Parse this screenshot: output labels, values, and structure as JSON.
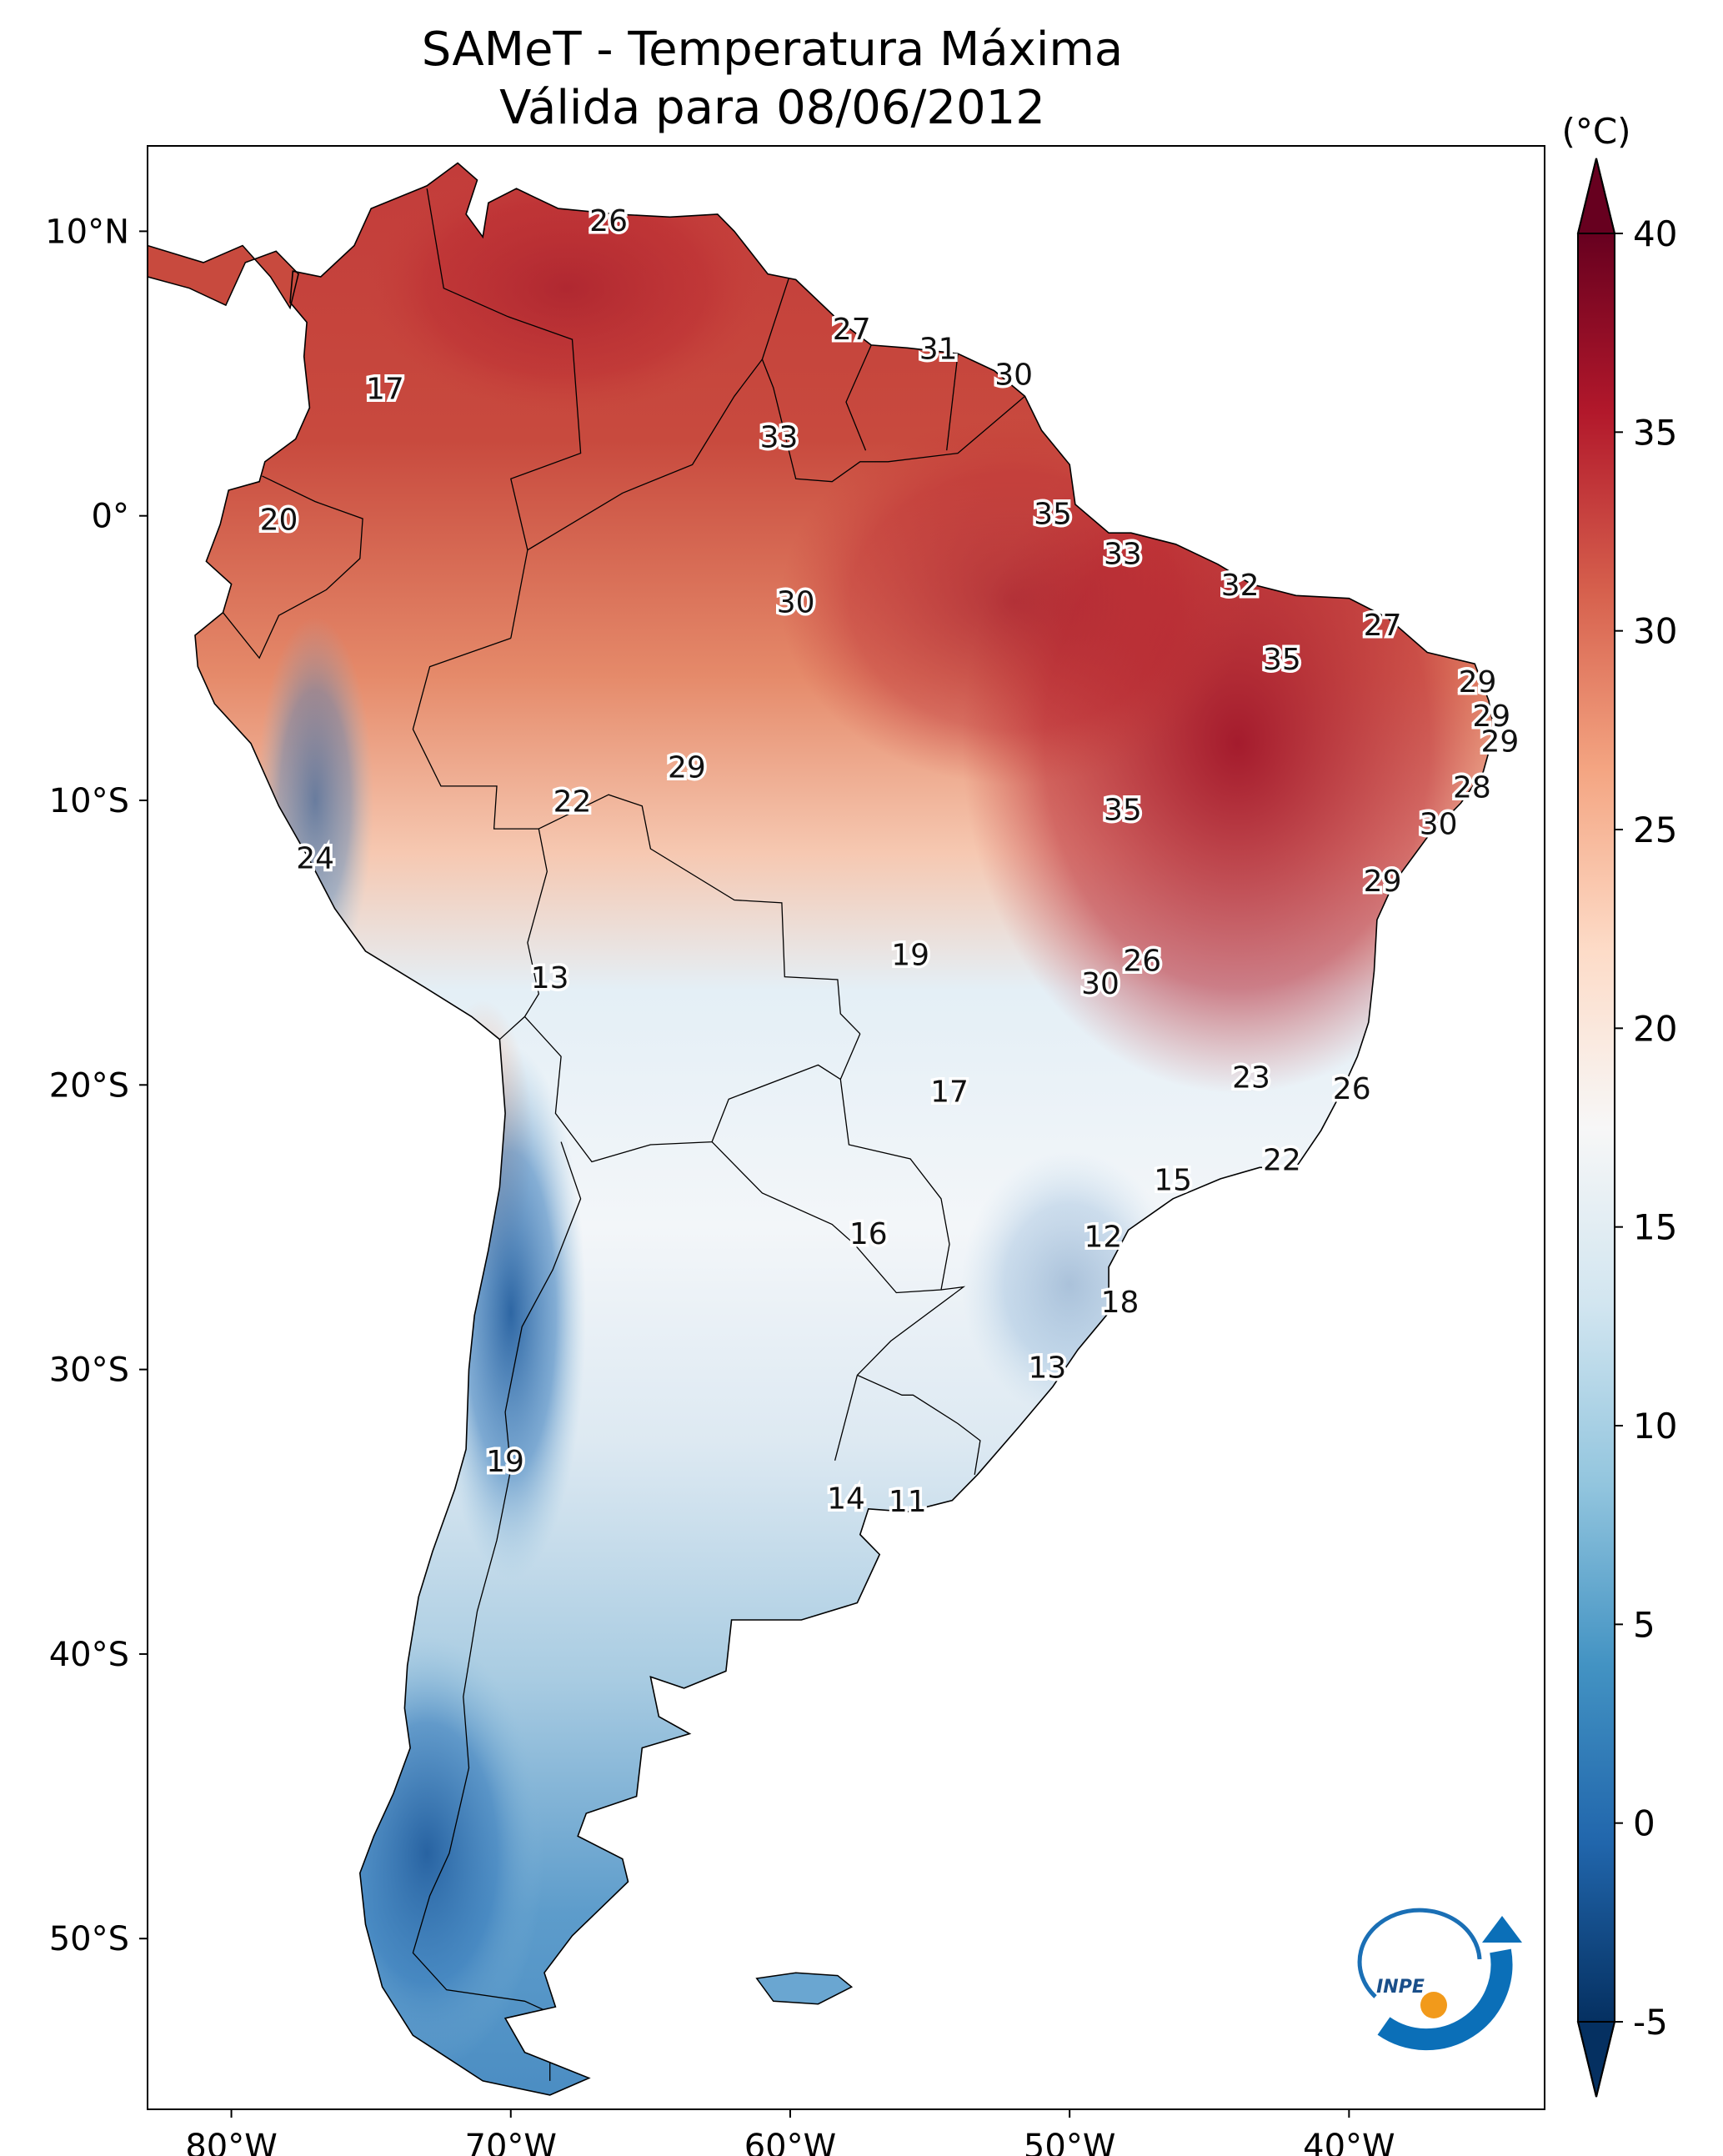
{
  "title": {
    "line1": "SAMeT - Temperatura Máxima",
    "line2": "Válida para 08/06/2012"
  },
  "map": {
    "lon_ticks": [
      "80°W",
      "70°W",
      "60°W",
      "50°W",
      "40°W"
    ],
    "lat_ticks": [
      "10°N",
      "0°",
      "10°S",
      "20°S",
      "30°S",
      "40°S",
      "50°S"
    ],
    "lon_range": [
      -83,
      -33
    ],
    "lat_range": [
      -56,
      13
    ]
  },
  "colorbar": {
    "unit": "(°C)",
    "ticks": [
      "40",
      "35",
      "30",
      "25",
      "20",
      "15",
      "10",
      "5",
      "0",
      "-5"
    ],
    "range": [
      -5,
      40
    ],
    "colormap": "RdBu_r",
    "colors": [
      "#053061",
      "#2166ac",
      "#4393c3",
      "#92c5de",
      "#d1e5f0",
      "#f7f7f7",
      "#fddbc7",
      "#f4a582",
      "#d6604d",
      "#b2182b",
      "#67001f"
    ]
  },
  "contour_labels": [
    {
      "text": "26",
      "lon": -66.5,
      "lat": 10.3
    },
    {
      "text": "17",
      "lon": -74.5,
      "lat": 4.4
    },
    {
      "text": "27",
      "lon": -57.8,
      "lat": 6.5
    },
    {
      "text": "31",
      "lon": -54.7,
      "lat": 5.8
    },
    {
      "text": "30",
      "lon": -52.0,
      "lat": 4.9
    },
    {
      "text": "33",
      "lon": -60.4,
      "lat": 2.7
    },
    {
      "text": "20",
      "lon": -78.3,
      "lat": -0.2
    },
    {
      "text": "35",
      "lon": -50.6,
      "lat": 0.0
    },
    {
      "text": "33",
      "lon": -48.1,
      "lat": -1.4
    },
    {
      "text": "32",
      "lon": -43.9,
      "lat": -2.5
    },
    {
      "text": "30",
      "lon": -59.8,
      "lat": -3.1
    },
    {
      "text": "27",
      "lon": -38.8,
      "lat": -3.9
    },
    {
      "text": "35",
      "lon": -42.4,
      "lat": -5.1
    },
    {
      "text": "29",
      "lon": -35.4,
      "lat": -5.9
    },
    {
      "text": "29",
      "lon": -34.9,
      "lat": -7.1
    },
    {
      "text": "29",
      "lon": -34.6,
      "lat": -8.0
    },
    {
      "text": "29",
      "lon": -63.7,
      "lat": -8.9
    },
    {
      "text": "28",
      "lon": -35.6,
      "lat": -9.6
    },
    {
      "text": "22",
      "lon": -67.8,
      "lat": -10.1
    },
    {
      "text": "35",
      "lon": -48.1,
      "lat": -10.4
    },
    {
      "text": "30",
      "lon": -36.8,
      "lat": -10.9
    },
    {
      "text": "24",
      "lon": -77.0,
      "lat": -12.1
    },
    {
      "text": "29",
      "lon": -38.8,
      "lat": -12.9
    },
    {
      "text": "26",
      "lon": -47.4,
      "lat": -15.7
    },
    {
      "text": "19",
      "lon": -55.7,
      "lat": -15.5
    },
    {
      "text": "30",
      "lon": -48.9,
      "lat": -16.5
    },
    {
      "text": "13",
      "lon": -68.6,
      "lat": -16.3
    },
    {
      "text": "23",
      "lon": -43.5,
      "lat": -19.8
    },
    {
      "text": "17",
      "lon": -54.3,
      "lat": -20.3
    },
    {
      "text": "26",
      "lon": -39.9,
      "lat": -20.2
    },
    {
      "text": "22",
      "lon": -42.4,
      "lat": -22.7
    },
    {
      "text": "15",
      "lon": -46.3,
      "lat": -23.4
    },
    {
      "text": "16",
      "lon": -57.2,
      "lat": -25.3
    },
    {
      "text": "12",
      "lon": -48.8,
      "lat": -25.4
    },
    {
      "text": "18",
      "lon": -48.2,
      "lat": -27.7
    },
    {
      "text": "13",
      "lon": -50.8,
      "lat": -30.0
    },
    {
      "text": "19",
      "lon": -70.2,
      "lat": -33.3
    },
    {
      "text": "14",
      "lon": -58.0,
      "lat": -34.6
    },
    {
      "text": "11",
      "lon": -55.8,
      "lat": -34.7
    }
  ],
  "logo": {
    "text": "INPE"
  }
}
